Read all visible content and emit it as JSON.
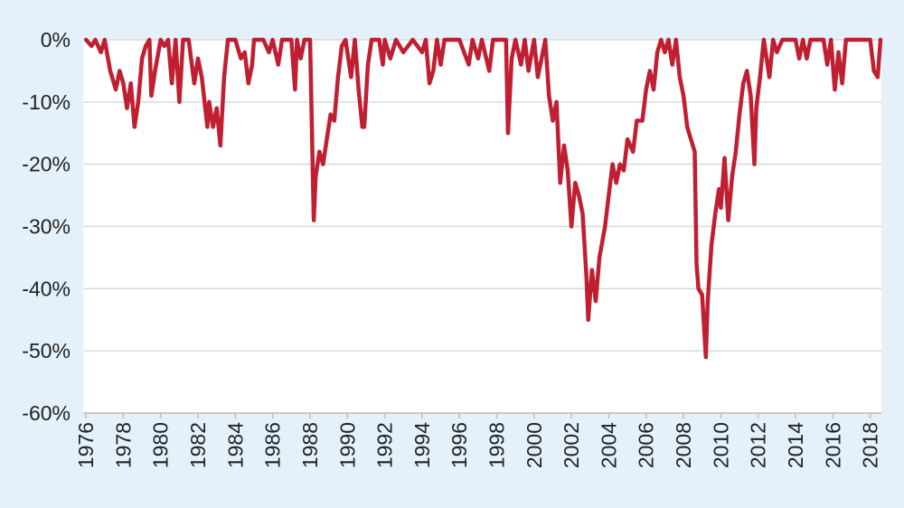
{
  "chart_data": {
    "type": "line",
    "x": [
      1976.0,
      1976.3,
      1976.5,
      1976.8,
      1977.0,
      1977.3,
      1977.6,
      1977.8,
      1978.0,
      1978.2,
      1978.4,
      1978.6,
      1978.8,
      1979.0,
      1979.2,
      1979.4,
      1979.5,
      1979.7,
      1980.0,
      1980.2,
      1980.4,
      1980.6,
      1980.8,
      1981.0,
      1981.2,
      1981.5,
      1981.8,
      1982.0,
      1982.2,
      1982.5,
      1982.6,
      1982.8,
      1983.0,
      1983.2,
      1983.4,
      1983.6,
      1984.0,
      1984.3,
      1984.5,
      1984.7,
      1984.9,
      1985.0,
      1985.5,
      1985.8,
      1986.0,
      1986.3,
      1986.5,
      1987.0,
      1987.2,
      1987.3,
      1987.5,
      1987.7,
      1988.0,
      1988.2,
      1988.3,
      1988.5,
      1988.7,
      1988.9,
      1989.1,
      1989.3,
      1989.5,
      1989.7,
      1989.9,
      1990.2,
      1990.4,
      1990.6,
      1990.8,
      1990.9,
      1991.1,
      1991.3,
      1991.7,
      1991.9,
      1992.0,
      1992.3,
      1992.6,
      1993.0,
      1993.5,
      1994.0,
      1994.2,
      1994.4,
      1994.6,
      1994.8,
      1995.0,
      1995.2,
      1996.0,
      1996.5,
      1996.7,
      1997.0,
      1997.2,
      1997.6,
      1997.8,
      1998.0,
      1998.5,
      1998.6,
      1998.8,
      1999.0,
      1999.3,
      1999.5,
      1999.7,
      2000.0,
      2000.2,
      2000.4,
      2000.6,
      2000.8,
      2001.0,
      2001.2,
      2001.4,
      2001.6,
      2001.8,
      2002.0,
      2002.2,
      2002.4,
      2002.6,
      2002.8,
      2002.9,
      2003.1,
      2003.3,
      2003.5,
      2003.8,
      2004.0,
      2004.2,
      2004.4,
      2004.6,
      2004.8,
      2005.0,
      2005.3,
      2005.5,
      2005.8,
      2006.0,
      2006.2,
      2006.4,
      2006.6,
      2006.8,
      2007.0,
      2007.2,
      2007.4,
      2007.6,
      2007.8,
      2008.0,
      2008.2,
      2008.4,
      2008.6,
      2008.7,
      2008.8,
      2009.0,
      2009.2,
      2009.3,
      2009.5,
      2009.7,
      2009.9,
      2010.0,
      2010.2,
      2010.4,
      2010.6,
      2010.8,
      2011.0,
      2011.2,
      2011.4,
      2011.6,
      2011.8,
      2011.9,
      2012.1,
      2012.3,
      2012.6,
      2012.8,
      2013.0,
      2013.3,
      2014.0,
      2014.2,
      2014.4,
      2014.6,
      2014.8,
      2015.5,
      2015.7,
      2015.9,
      2016.1,
      2016.3,
      2016.5,
      2016.7,
      2017.0,
      2017.5,
      2018.0,
      2018.2,
      2018.4,
      2018.55
    ],
    "values": [
      0,
      -1,
      0,
      -2,
      0,
      -5,
      -8,
      -5,
      -7,
      -11,
      -7,
      -14,
      -10,
      -3,
      -1,
      0,
      -9,
      -5,
      0,
      -1,
      0,
      -7,
      0,
      -10,
      0,
      0,
      -7,
      -3,
      -6,
      -14,
      -10,
      -14,
      -11,
      -17,
      -6,
      0,
      0,
      -3,
      -2,
      -7,
      -4,
      0,
      0,
      -2,
      0,
      -4,
      0,
      0,
      -8,
      0,
      -3,
      0,
      0,
      -29,
      -22,
      -18,
      -20,
      -16,
      -12,
      -13,
      -6,
      -1,
      0,
      -6,
      0,
      -8,
      -14,
      -14,
      -4,
      0,
      0,
      -4,
      0,
      -3,
      0,
      -2,
      0,
      -2,
      0,
      -7,
      -5,
      0,
      -4,
      0,
      0,
      -4,
      0,
      -3,
      0,
      -5,
      0,
      0,
      0,
      -15,
      -3,
      0,
      -4,
      0,
      -5,
      0,
      -6,
      -3,
      0,
      -9,
      -13,
      -10,
      -23,
      -17,
      -21,
      -30,
      -23,
      -25,
      -28,
      -38,
      -45,
      -37,
      -42,
      -35,
      -30,
      -25,
      -20,
      -23,
      -20,
      -21,
      -16,
      -18,
      -13,
      -13,
      -8,
      -5,
      -8,
      -2,
      0,
      -2,
      0,
      -4,
      0,
      -6,
      -9,
      -14,
      -16,
      -18,
      -36,
      -40,
      -41,
      -51,
      -42,
      -33,
      -28,
      -24,
      -27,
      -19,
      -29,
      -22,
      -18,
      -12,
      -7,
      -5,
      -9,
      -20,
      -11,
      -6,
      0,
      -6,
      0,
      -2,
      0,
      0,
      -3,
      0,
      -3,
      0,
      0,
      -4,
      0,
      -8,
      -2,
      -7,
      0,
      0,
      0,
      0,
      -5,
      -6,
      0
    ],
    "color": "#c01f32",
    "xlim": [
      1975.85,
      2018.6
    ],
    "xticks": [
      1976,
      1978,
      1980,
      1982,
      1984,
      1986,
      1988,
      1990,
      1992,
      1994,
      1996,
      1998,
      2000,
      2002,
      2004,
      2006,
      2008,
      2010,
      2012,
      2014,
      2016,
      2018
    ],
    "ylim": [
      -60,
      0
    ],
    "yticks": [
      {
        "value": 0,
        "label": "0%"
      },
      {
        "value": -10,
        "label": "-10%"
      },
      {
        "value": -20,
        "label": "-20%"
      },
      {
        "value": -30,
        "label": "-30%"
      },
      {
        "value": -40,
        "label": "-40%"
      },
      {
        "value": -50,
        "label": "-50%"
      },
      {
        "value": -60,
        "label": "-60%"
      }
    ],
    "grid": true
  }
}
